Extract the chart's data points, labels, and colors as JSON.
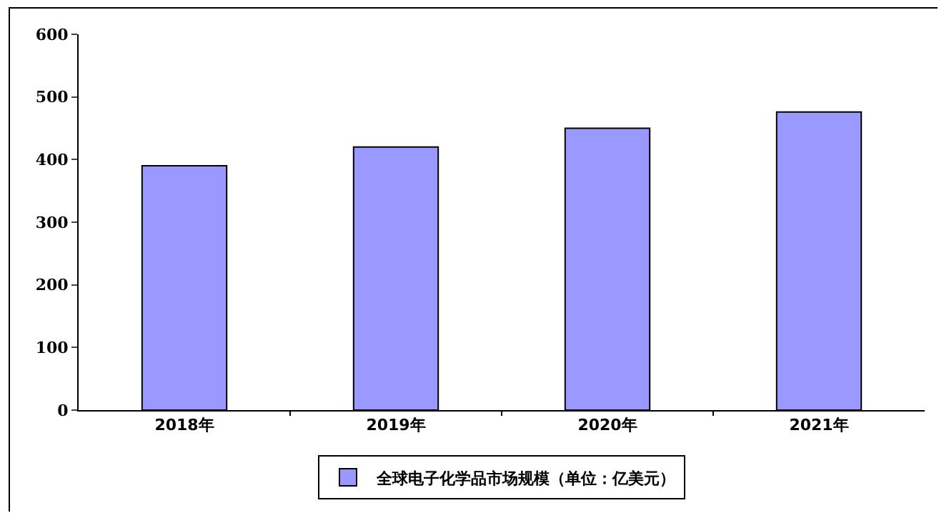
{
  "chart_data": {
    "type": "bar",
    "categories": [
      "2018年",
      "2019年",
      "2020年",
      "2021年"
    ],
    "series": [
      {
        "name": "全球电子化学品市场规模（单位：亿美元）",
        "color": "#9999ff",
        "values": [
          390,
          420,
          450,
          476
        ]
      }
    ],
    "ylim": [
      0,
      600
    ],
    "yticks": [
      0,
      100,
      200,
      300,
      400,
      500,
      600
    ],
    "grid": false,
    "legend": "bottom"
  }
}
